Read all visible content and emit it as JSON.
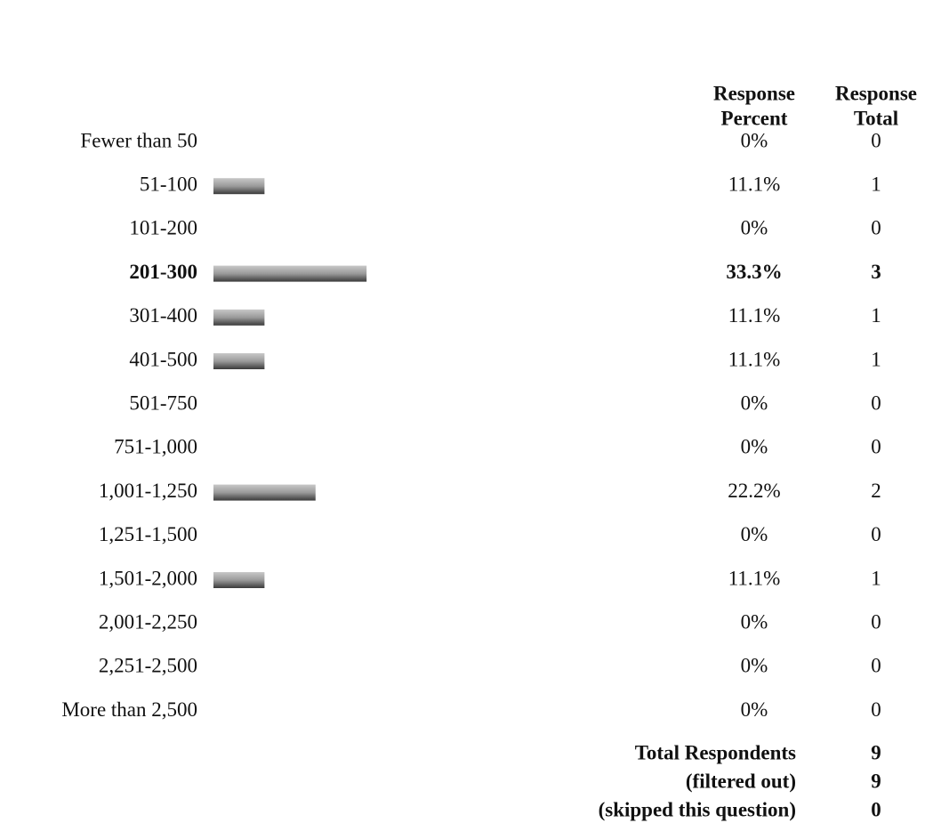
{
  "chart_data": {
    "type": "bar",
    "column_headers": [
      [
        "Response",
        "Percent"
      ],
      [
        "Response",
        "Total"
      ]
    ],
    "categories": [
      "Fewer than 50",
      "51-100",
      "101-200",
      "201-300",
      "301-400",
      "401-500",
      "501-750",
      "751-1,000",
      "1,001-1,250",
      "1,251-1,500",
      "1,501-2,000",
      "2,001-2,250",
      "2,251-2,500",
      "More than 2,500"
    ],
    "values": [
      0,
      11.1,
      0,
      33.3,
      11.1,
      11.1,
      0,
      0,
      22.2,
      0,
      11.1,
      0,
      0,
      0
    ],
    "value_labels": [
      "0%",
      "11.1%",
      "0%",
      "33.3%",
      "11.1%",
      "11.1%",
      "0%",
      "0%",
      "22.2%",
      "0%",
      "11.1%",
      "0%",
      "0%",
      "0%"
    ],
    "counts": [
      0,
      1,
      0,
      3,
      1,
      1,
      0,
      0,
      2,
      0,
      1,
      0,
      0,
      0
    ],
    "summary": [
      {
        "label": "Total Respondents",
        "value": 9
      },
      {
        "label": "(filtered out)",
        "value": 9
      },
      {
        "label": "(skipped this question)",
        "value": 0
      }
    ]
  }
}
